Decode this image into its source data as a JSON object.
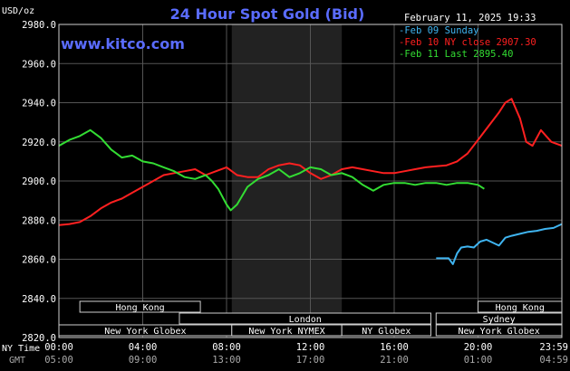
{
  "header": {
    "title": "24 Hour Spot Gold (Bid)",
    "unit_label": "USD/oz",
    "site": "www.kitco.com",
    "datetime": "February 11, 2025 19:33",
    "title_color": "#5a6cff",
    "site_color": "#5a6cff"
  },
  "legend": [
    {
      "text": "Feb 09 Sunday",
      "color": "#3fb4f0"
    },
    {
      "text": "Feb 10 NY close 2907.30",
      "color": "#ff2020"
    },
    {
      "text": "Feb 11 Last 2895.40",
      "color": "#33dd33"
    }
  ],
  "sessions": {
    "row1": [
      {
        "label": "Hong Kong",
        "start": 1.0,
        "end": 6.75
      },
      {
        "label": "Hong Kong",
        "start": 20.0,
        "end": 24.0
      }
    ],
    "row2": [
      {
        "label": "London",
        "start": 5.75,
        "end": 17.75
      },
      {
        "label": "Sydney",
        "start": 18.0,
        "end": 24.0
      }
    ],
    "row3": [
      {
        "label": "New York Globex",
        "start": 0.0,
        "end": 8.25
      },
      {
        "label": "New York NYMEX",
        "start": 8.25,
        "end": 13.5
      },
      {
        "label": "NY Globex",
        "start": 13.5,
        "end": 17.75
      },
      {
        "label": "New York Globex",
        "start": 18.0,
        "end": 24.0
      }
    ]
  },
  "time_axis": {
    "row1_label": "NY Time",
    "row2_label": "GMT",
    "ticks": [
      {
        "h": 0,
        "ny": "00:00",
        "gmt": "05:00"
      },
      {
        "h": 4,
        "ny": "04:00",
        "gmt": "09:00"
      },
      {
        "h": 8,
        "ny": "08:00",
        "gmt": "13:00"
      },
      {
        "h": 12,
        "ny": "12:00",
        "gmt": "17:00"
      },
      {
        "h": 16,
        "ny": "16:00",
        "gmt": "21:00"
      },
      {
        "h": 20,
        "ny": "20:00",
        "gmt": "01:00"
      },
      {
        "h": 24,
        "ny": "23:59",
        "gmt": "04:59"
      }
    ]
  },
  "chart_data": {
    "type": "line",
    "title": "24 Hour Spot Gold (Bid)",
    "ylabel": "USD/oz",
    "ylim": [
      2820,
      2980
    ],
    "xlim": [
      0,
      24
    ],
    "yticks": [
      "2820.0",
      "2840.0",
      "2860.0",
      "2880.0",
      "2900.0",
      "2920.0",
      "2940.0",
      "2960.0",
      "2980.0"
    ],
    "shaded_region": [
      8.25,
      13.5
    ],
    "grid": true,
    "legend_position": "top-right",
    "series": [
      {
        "name": "Feb 09 Sunday",
        "color": "#3fb4f0",
        "x": [
          18.0,
          18.6,
          18.8,
          19.0,
          19.2,
          19.5,
          19.8,
          20.1,
          20.4,
          20.7,
          21.0,
          21.3,
          21.6,
          22.0,
          22.4,
          22.8,
          23.2,
          23.6,
          24.0
        ],
        "y": [
          2860.5,
          2860.5,
          2857.5,
          2863,
          2866,
          2866.5,
          2866,
          2869,
          2870,
          2868.5,
          2867,
          2871,
          2872,
          2873,
          2874,
          2874.5,
          2875.5,
          2876,
          2878
        ]
      },
      {
        "name": "Feb 10 NY close 2907.30",
        "color": "#ff2020",
        "x": [
          0.0,
          0.5,
          1.0,
          1.5,
          2.0,
          2.5,
          3.0,
          3.5,
          4.0,
          4.5,
          5.0,
          5.5,
          6.0,
          6.5,
          7.0,
          7.5,
          8.0,
          8.5,
          9.0,
          9.5,
          10.0,
          10.5,
          11.0,
          11.5,
          12.0,
          12.5,
          13.0,
          13.5,
          14.0,
          14.5,
          15.0,
          15.5,
          16.0,
          16.5,
          17.0,
          17.5,
          18.0,
          18.5,
          19.0,
          19.5,
          20.0,
          20.5,
          21.0,
          21.3,
          21.6,
          22.0,
          22.3,
          22.6,
          23.0,
          23.5,
          24.0
        ],
        "y": [
          2877.5,
          2878,
          2879,
          2882,
          2886,
          2889,
          2891,
          2894,
          2897,
          2900,
          2903,
          2904,
          2905,
          2906,
          2903,
          2905,
          2907,
          2903,
          2902,
          2902,
          2906,
          2908,
          2909,
          2908,
          2904,
          2901,
          2903,
          2906,
          2907,
          2906,
          2905,
          2904,
          2904,
          2905,
          2906,
          2907,
          2907.5,
          2908,
          2910,
          2914,
          2921,
          2928,
          2935,
          2940,
          2942,
          2932,
          2920,
          2918,
          2926,
          2920,
          2918
        ]
      },
      {
        "name": "Feb 11 Last 2895.40",
        "color": "#33dd33",
        "x": [
          0.0,
          0.5,
          1.0,
          1.5,
          2.0,
          2.5,
          3.0,
          3.5,
          4.0,
          4.5,
          5.0,
          5.5,
          6.0,
          6.5,
          7.0,
          7.3,
          7.6,
          8.0,
          8.2,
          8.5,
          9.0,
          9.5,
          10.0,
          10.5,
          11.0,
          11.5,
          12.0,
          12.5,
          13.0,
          13.5,
          14.0,
          14.5,
          15.0,
          15.5,
          16.0,
          16.5,
          17.0,
          17.5,
          18.0,
          18.5,
          19.0,
          19.5,
          20.0,
          20.3
        ],
        "y": [
          2918,
          2921,
          2923,
          2926,
          2922,
          2916,
          2912,
          2913,
          2910,
          2909,
          2907,
          2905,
          2902,
          2901,
          2903,
          2900,
          2896,
          2888,
          2885,
          2888,
          2897,
          2901,
          2903,
          2906,
          2902,
          2904,
          2907,
          2906,
          2903,
          2904,
          2902,
          2898,
          2895,
          2898,
          2899,
          2899,
          2898,
          2899,
          2899,
          2898,
          2899,
          2899,
          2898,
          2896
        ]
      }
    ]
  }
}
